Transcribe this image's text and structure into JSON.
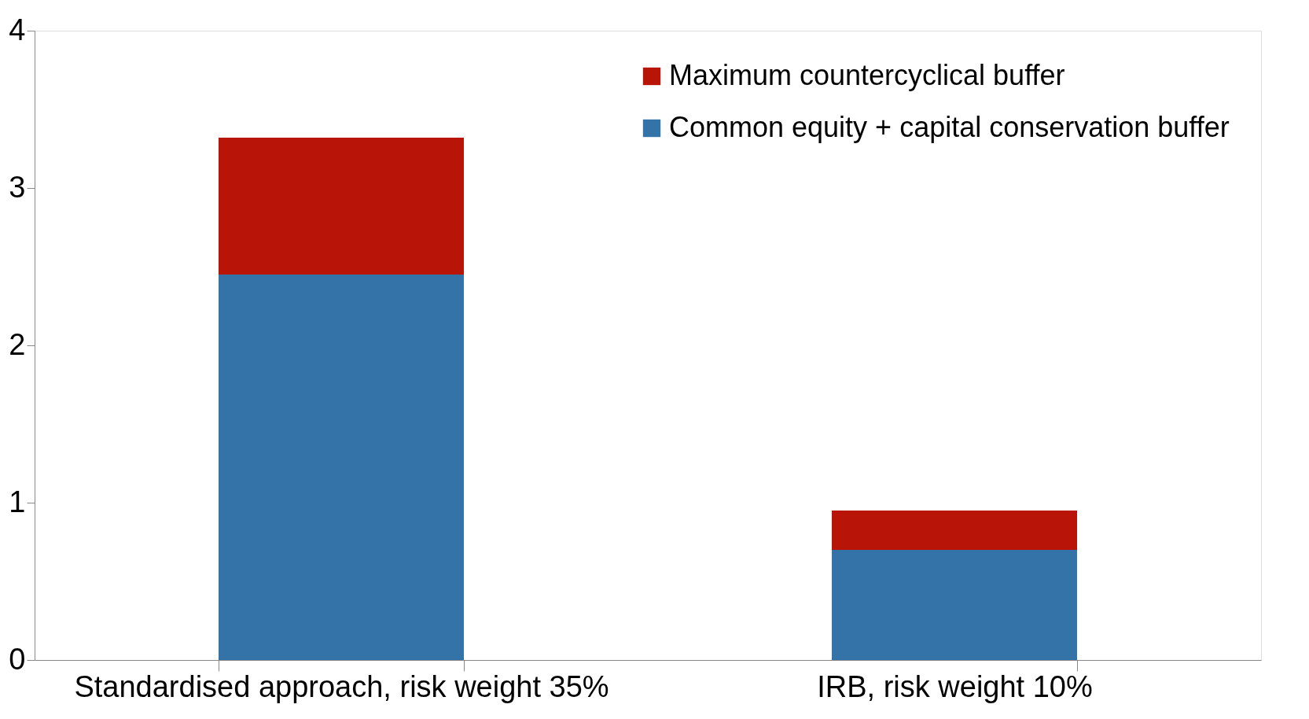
{
  "chart_data": {
    "type": "bar",
    "stacked": true,
    "categories": [
      "Standardised approach, risk weight 35%",
      "IRB, risk weight 10%"
    ],
    "series": [
      {
        "name": "Common equity + capital conservation buffer",
        "color": "#3473a8",
        "values": [
          2.45,
          0.7
        ]
      },
      {
        "name": "Maximum countercyclical buffer",
        "color": "#b81407",
        "values": [
          0.87,
          0.25
        ]
      }
    ],
    "ylim": [
      0,
      4
    ],
    "yticks": [
      0,
      1,
      2,
      3,
      4
    ],
    "grid": false,
    "legend": "top right"
  }
}
